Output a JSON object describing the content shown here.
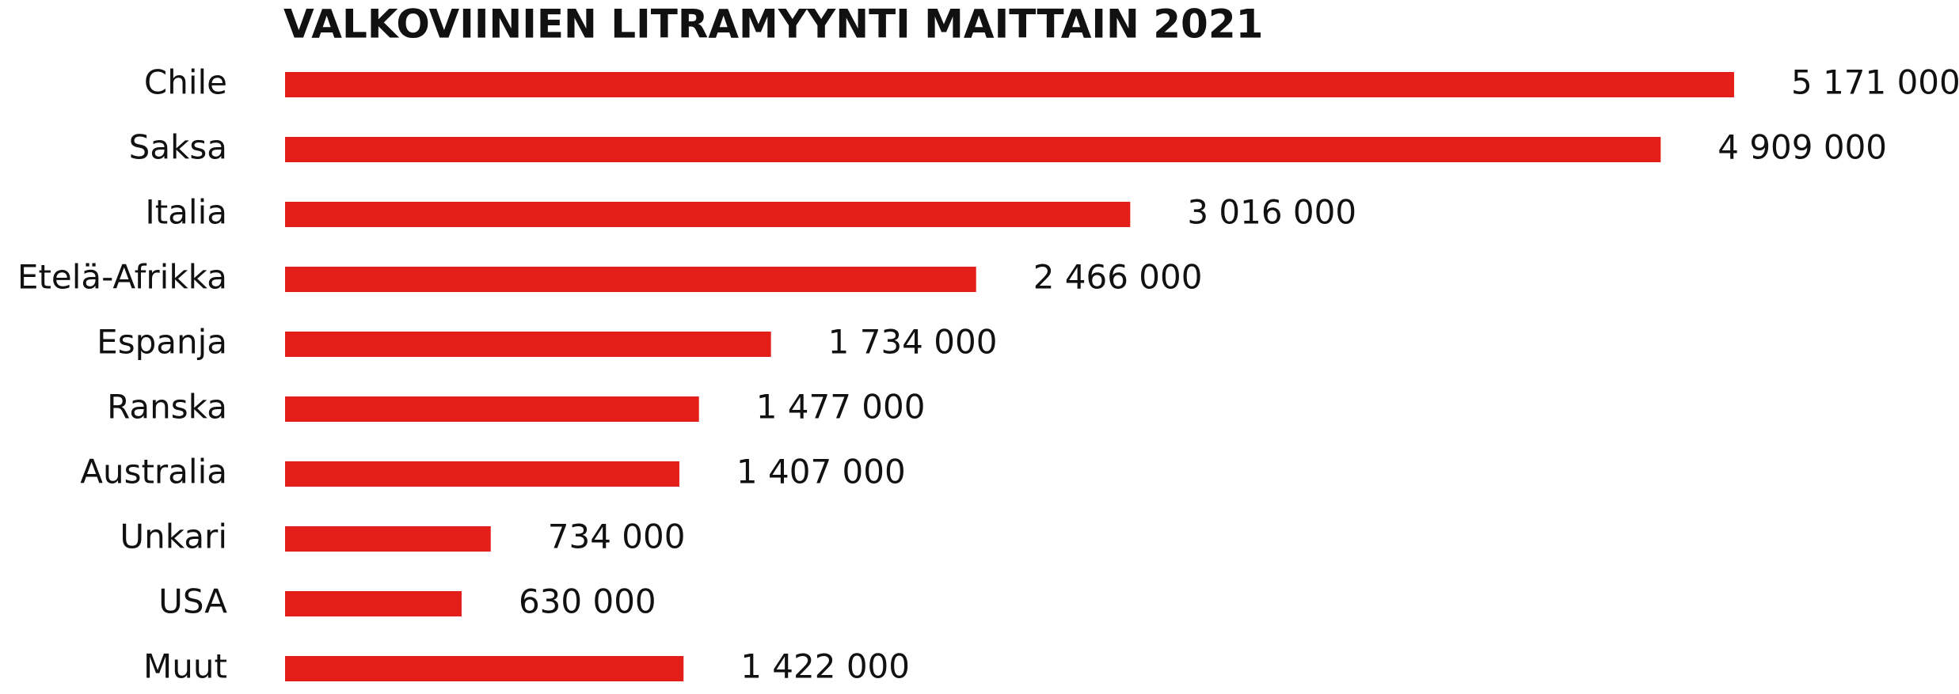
{
  "chart_data": {
    "type": "bar",
    "orientation": "horizontal",
    "title": "VALKOVIINIEN LITRAMYYNTI MAITTAIN 2021",
    "categories": [
      "Chile",
      "Saksa",
      "Italia",
      "Etelä-Afrikka",
      "Espanja",
      "Ranska",
      "Australia",
      "Unkari",
      "USA",
      "Muut"
    ],
    "values": [
      5171000,
      4909000,
      3016000,
      2466000,
      1734000,
      1477000,
      1407000,
      734000,
      630000,
      1422000
    ],
    "value_labels": [
      "5 171 000",
      "4 909 000",
      "3 016 000",
      "2 466 000",
      "1 734 000",
      "1 477 000",
      "1 407 000",
      "734 000",
      "630 000",
      "1 422 000"
    ],
    "color": "#e41e18"
  }
}
